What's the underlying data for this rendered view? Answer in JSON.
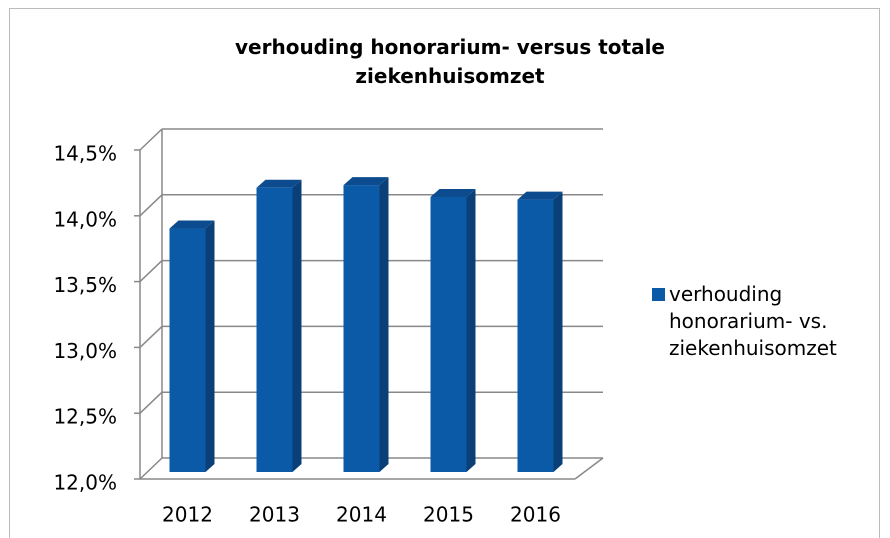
{
  "chart_data": {
    "type": "bar3d",
    "title": "verhouding honorarium- versus totale ziekenhuisomzet",
    "categories": [
      "2012",
      "2013",
      "2014",
      "2015",
      "2016"
    ],
    "series": [
      {
        "name": "verhouding honorarium- vs. ziekenhuisomzet",
        "color": "#0b5aa8",
        "values": [
          13.85,
          14.16,
          14.18,
          14.09,
          14.07
        ]
      }
    ],
    "ylim": [
      12.0,
      14.5
    ],
    "yticks": [
      {
        "value": 12.0,
        "label": "12,0%"
      },
      {
        "value": 12.5,
        "label": "12,5%"
      },
      {
        "value": 13.0,
        "label": "13,0%"
      },
      {
        "value": 13.5,
        "label": "13,5%"
      },
      {
        "value": 14.0,
        "label": "14,0%"
      },
      {
        "value": 14.5,
        "label": "14,5%"
      }
    ],
    "grid": true,
    "legend": "right"
  }
}
